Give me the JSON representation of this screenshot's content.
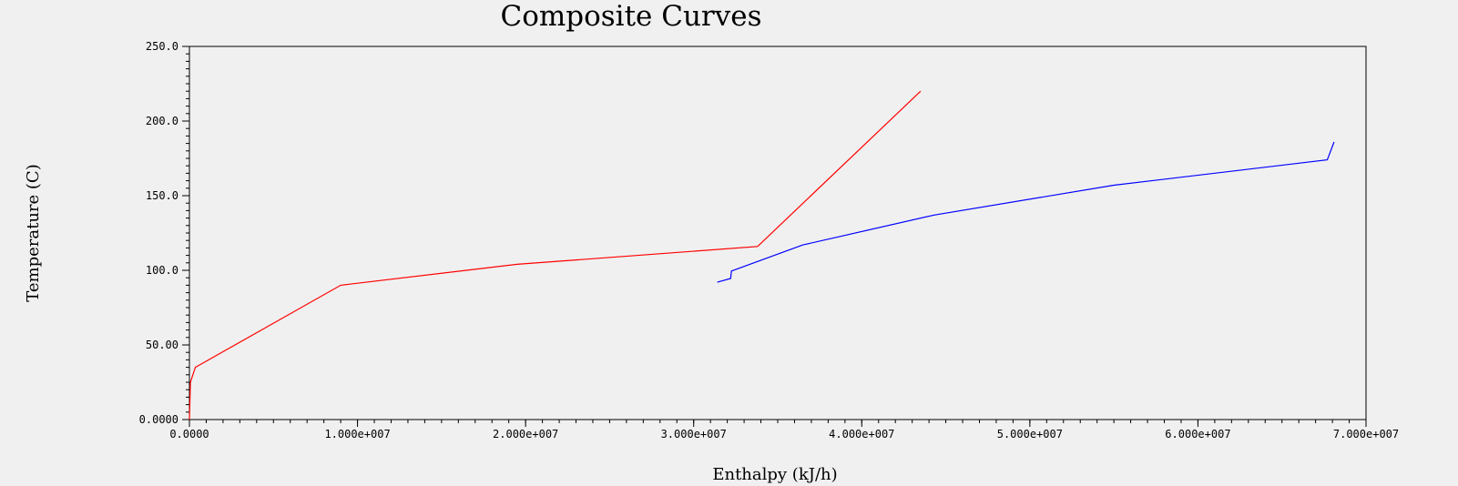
{
  "chart_data": {
    "type": "line",
    "title": "Composite Curves",
    "xlabel": "Enthalpy (kJ/h)",
    "ylabel": "Temperature (C)",
    "xlim": [
      0,
      70000000
    ],
    "ylim": [
      0,
      250
    ],
    "x_ticks": [
      {
        "value": 0,
        "label": "0.0000"
      },
      {
        "value": 10000000,
        "label": "1.000e+007"
      },
      {
        "value": 20000000,
        "label": "2.000e+007"
      },
      {
        "value": 30000000,
        "label": "3.000e+007"
      },
      {
        "value": 40000000,
        "label": "4.000e+007"
      },
      {
        "value": 50000000,
        "label": "5.000e+007"
      },
      {
        "value": 60000000,
        "label": "6.000e+007"
      },
      {
        "value": 70000000,
        "label": "7.000e+007"
      }
    ],
    "y_ticks": [
      {
        "value": 0,
        "label": "0.0000"
      },
      {
        "value": 50,
        "label": "50.00"
      },
      {
        "value": 100,
        "label": "100.0"
      },
      {
        "value": 150,
        "label": "150.0"
      },
      {
        "value": 200,
        "label": "200.0"
      },
      {
        "value": 250,
        "label": "250.0"
      }
    ],
    "grid": false,
    "series": [
      {
        "color": "#ff0000",
        "points": [
          [
            0,
            0
          ],
          [
            60000,
            25
          ],
          [
            350000,
            35
          ],
          [
            9000000,
            90
          ],
          [
            19500000,
            104
          ],
          [
            33800000,
            116
          ],
          [
            43500000,
            220
          ]
        ]
      },
      {
        "color": "#0000ff",
        "points": [
          [
            31400000,
            92
          ],
          [
            32200000,
            94.5
          ],
          [
            32250000,
            99.5
          ],
          [
            36500000,
            117
          ],
          [
            44300000,
            137
          ],
          [
            55000000,
            157
          ],
          [
            67700000,
            174
          ],
          [
            68100000,
            186
          ]
        ]
      }
    ]
  }
}
